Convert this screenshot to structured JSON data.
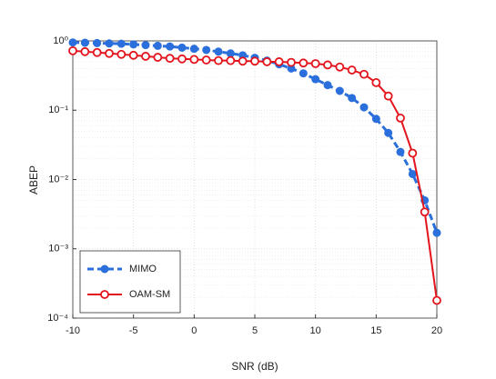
{
  "chart_data": {
    "type": "line",
    "xlabel": "SNR (dB)",
    "ylabel": "ABEP",
    "x": [
      -10,
      -9,
      -8,
      -7,
      -6,
      -5,
      -4,
      -3,
      -2,
      -1,
      0,
      1,
      2,
      3,
      4,
      5,
      6,
      7,
      8,
      9,
      10,
      11,
      12,
      13,
      14,
      15,
      16,
      17,
      18,
      19,
      20
    ],
    "series": [
      {
        "name": "MIMO",
        "color": "#2a6fdb",
        "style": "dashed",
        "marker": "filled",
        "values": [
          0.95,
          0.94,
          0.93,
          0.92,
          0.91,
          0.89,
          0.87,
          0.85,
          0.83,
          0.8,
          0.77,
          0.74,
          0.7,
          0.66,
          0.62,
          0.57,
          0.52,
          0.46,
          0.4,
          0.34,
          0.28,
          0.23,
          0.19,
          0.15,
          0.11,
          0.075,
          0.047,
          0.025,
          0.012,
          0.005,
          0.0017
        ]
      },
      {
        "name": "OAM-SM",
        "color": "#e3141c",
        "style": "solid",
        "marker": "open",
        "values": [
          0.72,
          0.7,
          0.68,
          0.66,
          0.64,
          0.62,
          0.6,
          0.58,
          0.56,
          0.55,
          0.54,
          0.53,
          0.52,
          0.52,
          0.51,
          0.51,
          0.5,
          0.5,
          0.49,
          0.48,
          0.47,
          0.45,
          0.42,
          0.38,
          0.33,
          0.25,
          0.16,
          0.077,
          0.024,
          0.0034,
          0.00018
        ]
      }
    ],
    "xlim": [
      -10,
      20
    ],
    "xticks": [
      -10,
      -5,
      0,
      5,
      10,
      15,
      20
    ],
    "ylim": [
      0.0001,
      1
    ],
    "ylog": true,
    "yticks": [
      {
        "value": 0.0001,
        "label": "10⁻⁴"
      },
      {
        "value": 0.001,
        "label": "10⁻³"
      },
      {
        "value": 0.01,
        "label": "10⁻²"
      },
      {
        "value": 0.1,
        "label": "10⁻¹"
      },
      {
        "value": 1,
        "label": "10⁰"
      }
    ],
    "grid": true,
    "minor_grid": true,
    "legend": "lower left"
  }
}
